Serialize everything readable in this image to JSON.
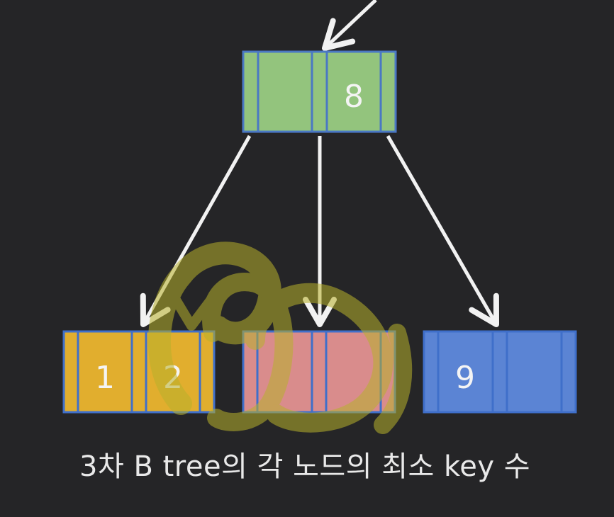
{
  "caption": "3차 B tree의 각 노드의 최소 key 수",
  "colors": {
    "background": "#252527",
    "root_fill": "#93c47d",
    "root_stroke": "#4a78c4",
    "left_fill": "#e1ae2e",
    "middle_fill": "#d98c8c",
    "right_fill": "#5b84d4",
    "node_stroke": "#3f6fca",
    "arrow": "#f2f2f2",
    "highlighter": "#b8b12c"
  },
  "nodes": {
    "root": {
      "keys": [
        "",
        "8"
      ]
    },
    "left": {
      "keys": [
        "1",
        "2"
      ]
    },
    "middle": {
      "keys": [
        "",
        ""
      ]
    },
    "right": {
      "keys": [
        "9",
        ""
      ]
    }
  }
}
